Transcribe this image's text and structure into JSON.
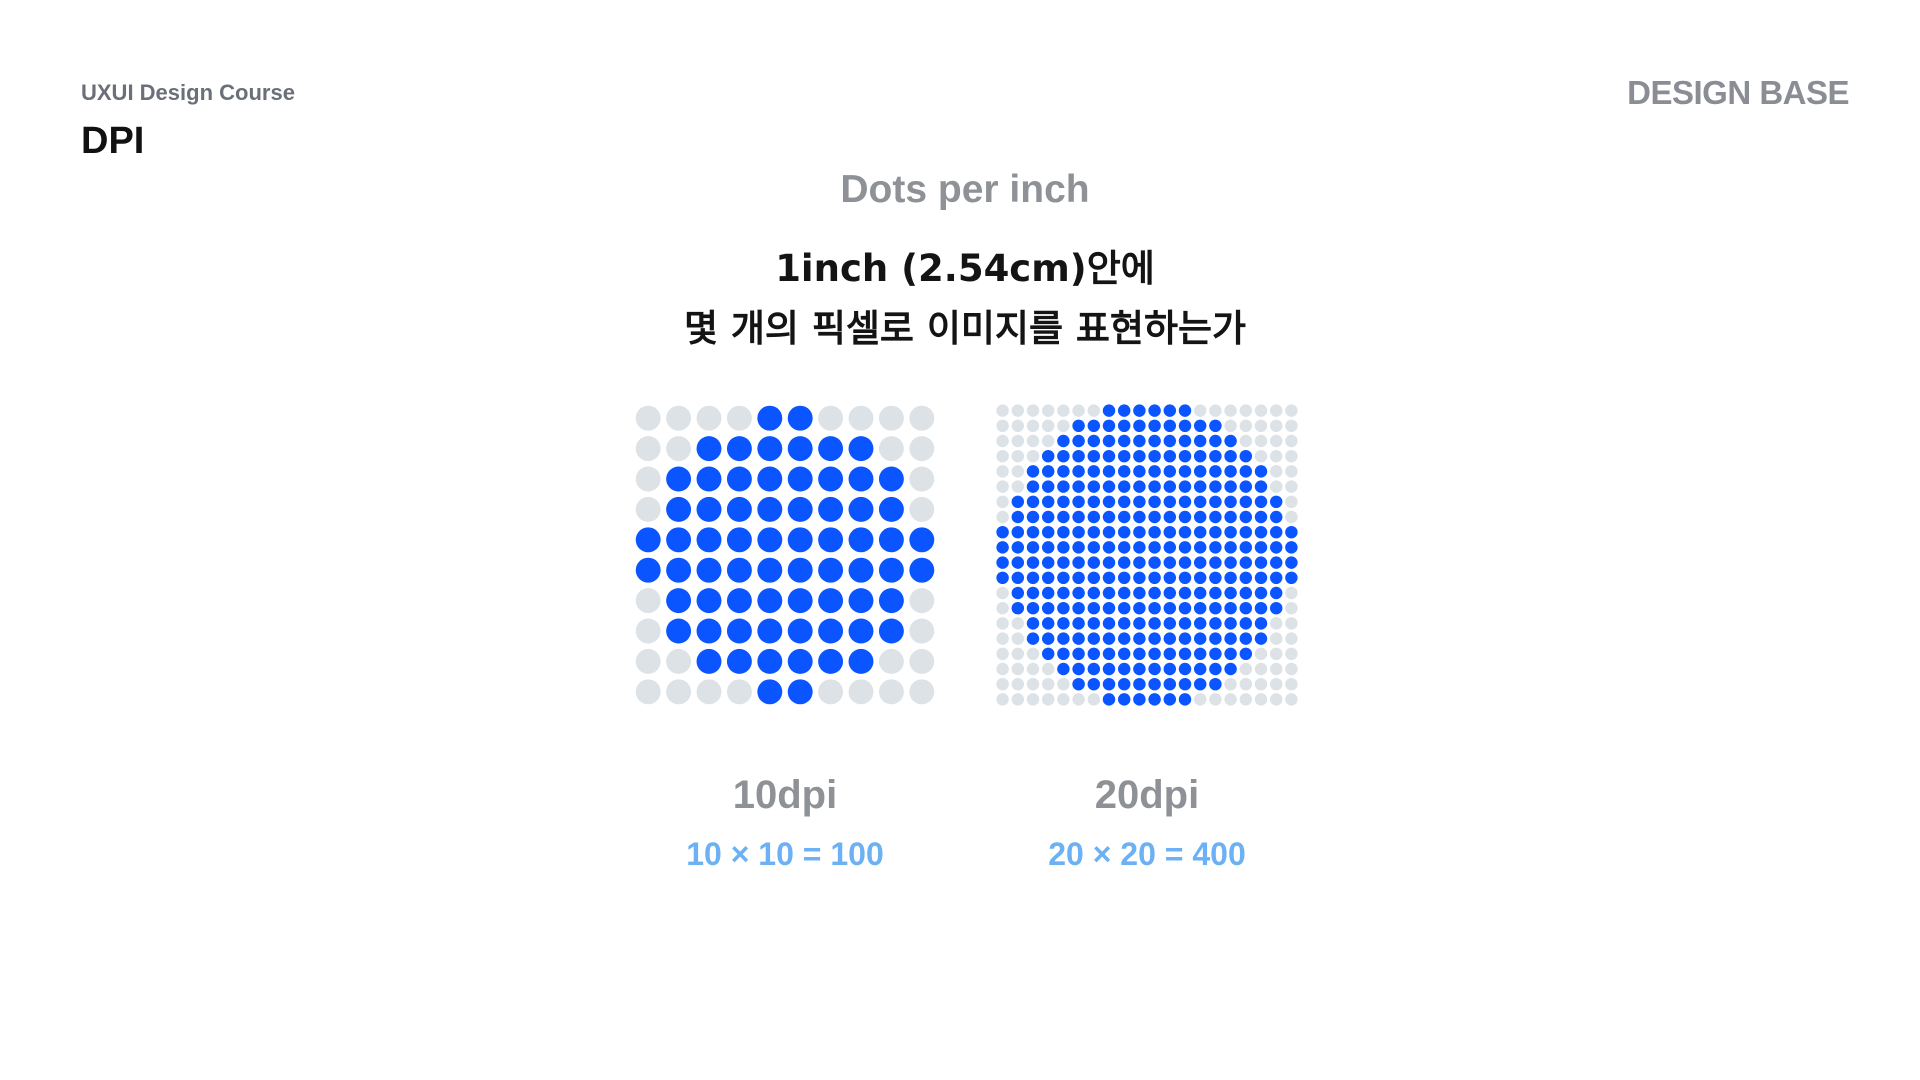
{
  "header": {
    "course": "UXUI Design Course",
    "title": "DPI",
    "logo": "DESIGN BASE"
  },
  "intro": {
    "subtitle": "Dots per inch",
    "line1": "1inch (2.54cm)안에",
    "line2": "몇 개의 픽셀로 이미지를 표현하는가"
  },
  "colors": {
    "filled": "#0a55ff",
    "empty": "#dde2e7",
    "formula": "#6bb1f4",
    "muted": "#8e9297"
  },
  "examples": [
    {
      "label": "10dpi",
      "formula": "10 × 10 = 100",
      "grid": [
        "0000110000",
        "0011111100",
        "0111111110",
        "0111111110",
        "1111111111",
        "1111111111",
        "0111111110",
        "0111111110",
        "0011111100",
        "0000110000"
      ]
    },
    {
      "label": "20dpi",
      "formula": "20 × 20 = 400",
      "grid": [
        "00000001111110000000",
        "00000111111111100000",
        "00001111111111110000",
        "00011111111111111000",
        "00111111111111111100",
        "00111111111111111100",
        "01111111111111111110",
        "01111111111111111110",
        "11111111111111111111",
        "11111111111111111111",
        "11111111111111111111",
        "11111111111111111111",
        "01111111111111111110",
        "01111111111111111110",
        "00111111111111111100",
        "00111111111111111100",
        "00011111111111111000",
        "00001111111111110000",
        "00000111111111100000",
        "00000001111110000000"
      ]
    }
  ]
}
